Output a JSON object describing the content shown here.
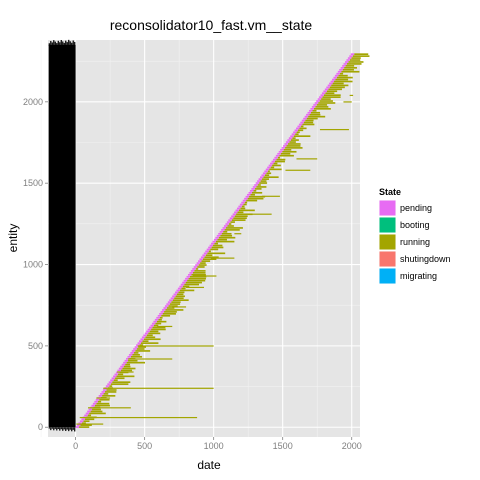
{
  "chart_data": {
    "type": "gantt",
    "title": "reconsolidator10_fast.vm__state",
    "xlabel": "date",
    "ylabel": "entity",
    "xlim": [
      -200,
      2060
    ],
    "ylim": [
      -60,
      2380
    ],
    "x_ticks": [
      "0",
      "500",
      "1000",
      "1500",
      "2000"
    ],
    "x_tick_values": [
      0,
      500,
      1000,
      1500,
      2000
    ],
    "y_ticks": [
      "0",
      "500",
      "1000",
      "1500",
      "2000"
    ],
    "y_tick_values": [
      0,
      500,
      1000,
      1500,
      2000
    ],
    "grid": true,
    "legend": {
      "title": "State",
      "position": "right",
      "entries": [
        {
          "name": "pending",
          "color": "#E76BF3"
        },
        {
          "name": "booting",
          "color": "#00BF7D"
        },
        {
          "name": "running",
          "color": "#A3A500"
        },
        {
          "name": "shutingdown",
          "color": "#F8766D"
        },
        {
          "name": "migrating",
          "color": "#00B0F6"
        }
      ]
    },
    "black_band": {
      "x_start": -195,
      "x_end": 0,
      "entity_min": 0,
      "entity_max": 2350
    },
    "staircase": {
      "entity_start": 0,
      "entity_end": 2300,
      "date_start": 0,
      "date_end": 2000,
      "pending_duration": 25,
      "running_colors": "#A3A500"
    },
    "sample_running_bars": [
      {
        "entity": 2040,
        "start": 1985,
        "end": 2010
      },
      {
        "entity": 2000,
        "start": 1940,
        "end": 2000
      },
      {
        "entity": 1830,
        "start": 1770,
        "end": 1980
      },
      {
        "entity": 1650,
        "start": 1600,
        "end": 1750
      },
      {
        "entity": 1580,
        "start": 1520,
        "end": 1700
      },
      {
        "entity": 1420,
        "start": 1350,
        "end": 1480
      },
      {
        "entity": 1310,
        "start": 1250,
        "end": 1420
      },
      {
        "entity": 1190,
        "start": 1150,
        "end": 1200
      },
      {
        "entity": 1040,
        "start": 980,
        "end": 1150
      },
      {
        "entity": 930,
        "start": 850,
        "end": 1020
      },
      {
        "entity": 860,
        "start": 800,
        "end": 930
      },
      {
        "entity": 740,
        "start": 700,
        "end": 800
      },
      {
        "entity": 620,
        "start": 590,
        "end": 700
      },
      {
        "entity": 500,
        "start": 450,
        "end": 1000
      },
      {
        "entity": 420,
        "start": 380,
        "end": 700
      },
      {
        "entity": 340,
        "start": 300,
        "end": 420
      },
      {
        "entity": 240,
        "start": 200,
        "end": 1000
      },
      {
        "entity": 180,
        "start": 150,
        "end": 250
      },
      {
        "entity": 120,
        "start": 90,
        "end": 400
      },
      {
        "entity": 60,
        "start": 30,
        "end": 880
      },
      {
        "entity": 20,
        "start": 5,
        "end": 200
      }
    ]
  }
}
